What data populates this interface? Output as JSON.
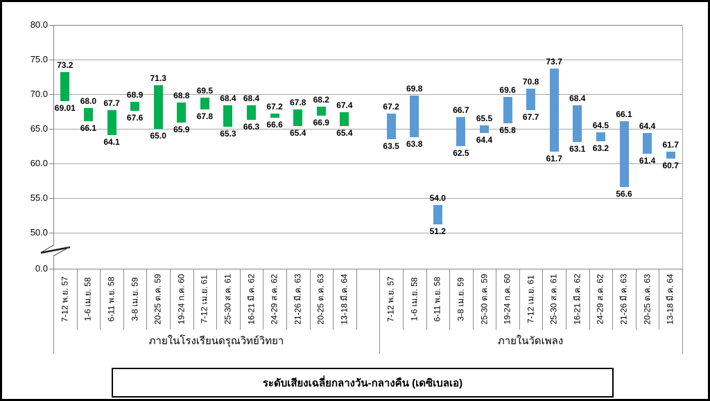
{
  "chart_data": {
    "type": "bar",
    "subtype": "floating-range-column",
    "title": "ระดับเสียงเฉลี่ยกลางวัน-กลางคืน (เดซิเบลเอ)",
    "legend": "none",
    "grid": true,
    "y_axis": {
      "tick_labels": [
        "80.0",
        "75.0",
        "70.0",
        "65.0",
        "60.0",
        "55.0",
        "50.0",
        "0.0"
      ],
      "tick_values": [
        80,
        75,
        70,
        65,
        60,
        55,
        50,
        0
      ],
      "display_min": 50,
      "display_max": 80,
      "axis_break": true
    },
    "colors": {
      "school_bar": "#00B050",
      "temple_bar": "#5B9BD5",
      "gridline": "#A6A6A6",
      "axis": "#808080",
      "text": "#000000"
    },
    "groups": [
      {
        "name": "ภายในโรงเรียนดรุณวิทย์วิทยา",
        "color": "#00B050",
        "bars": [
          {
            "category": "7-12 พ.ย. 57",
            "low": 69.01,
            "high": 73.2,
            "low_label": "69.01",
            "high_label": "73.2"
          },
          {
            "category": "1-6 เม.ย. 58",
            "low": 66.1,
            "high": 68.0,
            "low_label": "66.1",
            "high_label": "68.0"
          },
          {
            "category": "6-11 พ.ย. 58",
            "low": 64.1,
            "high": 67.7,
            "low_label": "64.1",
            "high_label": "67.7"
          },
          {
            "category": "3-8 เม.ย. 59",
            "low": 67.6,
            "high": 68.9,
            "low_label": "67.6",
            "high_label": "68.9"
          },
          {
            "category": "20-25 ต.ค. 59",
            "low": 65.0,
            "high": 71.3,
            "low_label": "65.0",
            "high_label": "71.3"
          },
          {
            "category": "19-24 ก.ค. 60",
            "low": 65.9,
            "high": 68.8,
            "low_label": "65.9",
            "high_label": "68.8"
          },
          {
            "category": "7-12 เม.ย. 61",
            "low": 67.8,
            "high": 69.5,
            "low_label": "67.8",
            "high_label": "69.5"
          },
          {
            "category": "25-30 ส.ค. 61",
            "low": 65.3,
            "high": 68.4,
            "low_label": "65.3",
            "high_label": "68.4"
          },
          {
            "category": "16-21 มี.ค. 62",
            "low": 66.3,
            "high": 68.4,
            "low_label": "66.3",
            "high_label": "68.4"
          },
          {
            "category": "24-29 ส.ค. 62",
            "low": 66.6,
            "high": 67.2,
            "low_label": "66.6",
            "high_label": "67.2"
          },
          {
            "category": "21-26 มี.ค. 63",
            "low": 65.4,
            "high": 67.8,
            "low_label": "65.4",
            "high_label": "67.8"
          },
          {
            "category": "20-25 ต.ค. 63",
            "low": 66.9,
            "high": 68.2,
            "low_label": "66.9",
            "high_label": "68.2"
          },
          {
            "category": "13-18 มี.ค. 64",
            "low": 65.4,
            "high": 67.4,
            "low_label": "65.4",
            "high_label": "67.4"
          }
        ]
      },
      {
        "name": "ภายในวัดเพลง",
        "color": "#5B9BD5",
        "bars": [
          {
            "category": "7-12 พ.ย. 57",
            "low": 63.5,
            "high": 67.2,
            "low_label": "63.5",
            "high_label": "67.2"
          },
          {
            "category": "1-6 เม.ย. 58",
            "low": 63.8,
            "high": 69.8,
            "low_label": "63.8",
            "high_label": "69.8"
          },
          {
            "category": "6-11 พ.ย. 58",
            "low": 51.2,
            "high": 54.0,
            "low_label": "51.2",
            "high_label": "54.0"
          },
          {
            "category": "3-8 เม.ย. 59",
            "low": 62.5,
            "high": 66.7,
            "low_label": "62.5",
            "high_label": "66.7"
          },
          {
            "category": "25-30 ต.ค. 59",
            "low": 64.4,
            "high": 65.5,
            "low_label": "64.4",
            "high_label": "65.5"
          },
          {
            "category": "19-24 ก.ค. 60",
            "low": 65.8,
            "high": 69.6,
            "low_label": "65.8",
            "high_label": "69.6"
          },
          {
            "category": "7-12 เม.ย. 61",
            "low": 67.7,
            "high": 70.8,
            "low_label": "67.7",
            "high_label": "70.8"
          },
          {
            "category": "25-30 ส.ค. 61",
            "low": 61.7,
            "high": 73.7,
            "low_label": "61.7",
            "high_label": "73.7"
          },
          {
            "category": "16-21 มี.ค. 62",
            "low": 63.1,
            "high": 68.4,
            "low_label": "63.1",
            "high_label": "68.4"
          },
          {
            "category": "24-29 ส.ค. 62",
            "low": 63.2,
            "high": 64.5,
            "low_label": "63.2",
            "high_label": "64.5"
          },
          {
            "category": "21-26 มี.ค. 63",
            "low": 56.6,
            "high": 66.1,
            "low_label": "56.6",
            "high_label": "66.1"
          },
          {
            "category": "20-25 ต.ค. 63",
            "low": 61.4,
            "high": 64.4,
            "low_label": "61.4",
            "high_label": "64.4"
          },
          {
            "category": "13-18 มี.ค. 64",
            "low": 60.7,
            "high": 61.7,
            "low_label": "60.7",
            "high_label": "61.7"
          }
        ]
      }
    ]
  }
}
